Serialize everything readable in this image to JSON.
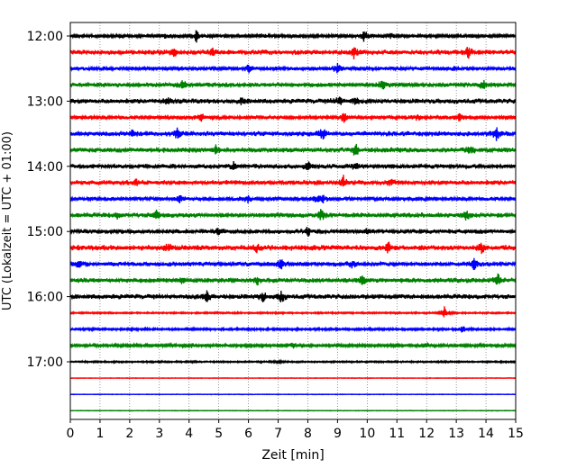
{
  "chart_data": {
    "type": "line",
    "chart_kind": "helicorder",
    "title": "",
    "xlabel": "Zeit  [min]",
    "ylabel": "UTC (Lokalzeit = UTC + 01:00)",
    "xlim": [
      0,
      15
    ],
    "xticks": [
      0,
      1,
      2,
      3,
      4,
      5,
      6,
      7,
      8,
      9,
      10,
      11,
      12,
      13,
      14,
      15
    ],
    "ytick_labels": [
      "12:00",
      "13:00",
      "14:00",
      "15:00",
      "16:00",
      "17:00"
    ],
    "trace_interval_min": 15,
    "start_time_utc": "12:00",
    "grid_x": true,
    "grid_style": "dotted",
    "color_cycle": [
      "#000000",
      "#ff0000",
      "#0000ff",
      "#008000"
    ],
    "traces": [
      {
        "start": "12:00",
        "color": "#000000",
        "noise": 0.3,
        "events": [
          [
            3.2,
            0.5
          ],
          [
            4.25,
            1.4
          ],
          [
            6.5,
            0.6
          ],
          [
            9.9,
            1.5
          ],
          [
            10.8,
            0.5
          ]
        ]
      },
      {
        "start": "12:15",
        "color": "#ff0000",
        "noise": 0.45,
        "events": [
          [
            3.5,
            0.9
          ],
          [
            4.8,
            0.7
          ],
          [
            9.55,
            1.5
          ],
          [
            13.4,
            1.2
          ]
        ]
      },
      {
        "start": "12:30",
        "color": "#0000ff",
        "noise": 0.35,
        "events": [
          [
            6.0,
            1.0
          ],
          [
            9.0,
            1.2
          ],
          [
            13.0,
            0.5
          ]
        ]
      },
      {
        "start": "12:45",
        "color": "#008000",
        "noise": 0.4,
        "events": [
          [
            3.8,
            1.1
          ],
          [
            10.5,
            1.4
          ],
          [
            13.9,
            1.0
          ]
        ]
      },
      {
        "start": "13:00",
        "color": "#000000",
        "noise": 0.45,
        "events": [
          [
            3.3,
            0.6
          ],
          [
            5.8,
            0.7
          ],
          [
            9.05,
            1.2
          ],
          [
            9.6,
            0.7
          ]
        ]
      },
      {
        "start": "13:15",
        "color": "#ff0000",
        "noise": 0.35,
        "events": [
          [
            4.4,
            1.0
          ],
          [
            9.2,
            1.2
          ],
          [
            11.7,
            0.8
          ],
          [
            13.1,
            1.0
          ]
        ]
      },
      {
        "start": "13:30",
        "color": "#0000ff",
        "noise": 0.45,
        "events": [
          [
            2.1,
            0.8
          ],
          [
            3.6,
            1.0
          ],
          [
            8.5,
            1.3
          ],
          [
            14.35,
            1.3
          ]
        ]
      },
      {
        "start": "13:45",
        "color": "#008000",
        "noise": 0.45,
        "events": [
          [
            4.9,
            0.9
          ],
          [
            9.6,
            1.3
          ],
          [
            13.45,
            1.1
          ]
        ]
      },
      {
        "start": "14:00",
        "color": "#000000",
        "noise": 0.4,
        "events": [
          [
            5.5,
            0.8
          ],
          [
            8.0,
            1.5
          ],
          [
            9.6,
            0.8
          ]
        ]
      },
      {
        "start": "14:15",
        "color": "#ff0000",
        "noise": 0.45,
        "events": [
          [
            2.2,
            0.6
          ],
          [
            9.2,
            1.3
          ],
          [
            10.8,
            0.7
          ]
        ]
      },
      {
        "start": "14:30",
        "color": "#0000ff",
        "noise": 0.35,
        "events": [
          [
            3.7,
            0.8
          ],
          [
            6.0,
            0.8
          ],
          [
            8.25,
            0.9
          ],
          [
            8.5,
            0.9
          ]
        ]
      },
      {
        "start": "14:45",
        "color": "#008000",
        "noise": 0.45,
        "events": [
          [
            1.6,
            0.6
          ],
          [
            2.9,
            0.9
          ],
          [
            8.45,
            1.1
          ],
          [
            13.35,
            1.2
          ]
        ]
      },
      {
        "start": "15:00",
        "color": "#000000",
        "noise": 0.4,
        "events": [
          [
            5.0,
            0.6
          ],
          [
            8.0,
            1.0
          ],
          [
            10.0,
            0.6
          ]
        ]
      },
      {
        "start": "15:15",
        "color": "#ff0000",
        "noise": 0.5,
        "events": [
          [
            3.3,
            0.8
          ],
          [
            6.3,
            0.7
          ],
          [
            10.7,
            1.1
          ],
          [
            13.85,
            1.1
          ]
        ]
      },
      {
        "start": "15:30",
        "color": "#0000ff",
        "noise": 0.4,
        "events": [
          [
            0.3,
            0.7
          ],
          [
            7.1,
            1.1
          ],
          [
            9.5,
            0.8
          ],
          [
            13.6,
            1.4
          ]
        ]
      },
      {
        "start": "15:45",
        "color": "#008000",
        "noise": 0.45,
        "events": [
          [
            3.8,
            1.0
          ],
          [
            6.3,
            0.8
          ],
          [
            9.85,
            1.1
          ],
          [
            14.4,
            1.6
          ]
        ]
      },
      {
        "start": "16:00",
        "color": "#000000",
        "noise": 0.45,
        "events": [
          [
            4.6,
            1.2
          ],
          [
            6.5,
            1.0
          ],
          [
            7.1,
            1.2
          ]
        ]
      },
      {
        "start": "16:15",
        "color": "#ff0000",
        "noise": 0.15,
        "events": [
          [
            12.6,
            1.4
          ]
        ]
      },
      {
        "start": "16:30",
        "color": "#0000ff",
        "noise": 0.2,
        "events": [
          [
            13.2,
            0.8
          ]
        ]
      },
      {
        "start": "16:45",
        "color": "#008000",
        "noise": 0.25,
        "events": [
          [
            4.1,
            0.6
          ],
          [
            7.5,
            0.6
          ],
          [
            12.0,
            0.6
          ]
        ]
      },
      {
        "start": "17:00",
        "color": "#000000",
        "noise": 0.15,
        "events": [
          [
            7.0,
            0.4
          ]
        ]
      },
      {
        "start": "17:15",
        "color": "#ff0000",
        "noise": 0.05,
        "events": []
      },
      {
        "start": "17:30",
        "color": "#0000ff",
        "noise": 0.05,
        "events": []
      },
      {
        "start": "17:45",
        "color": "#008000",
        "noise": 0.05,
        "events": []
      }
    ]
  }
}
